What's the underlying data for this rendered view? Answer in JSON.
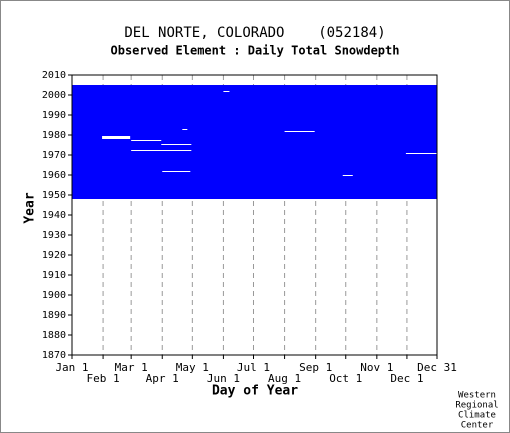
{
  "chart_data": {
    "type": "coverage",
    "title": "DEL NORTE, COLORADO    (052184)",
    "subtitle": "Observed Element : Daily Total Snowdepth",
    "x_label": "Day of Year",
    "y_label": "Year",
    "credit": [
      "Western",
      "Regional",
      "Climate",
      "Center"
    ],
    "color": "#0000ff",
    "xlim": [
      1,
      365
    ],
    "ylim": [
      1870,
      2010
    ],
    "xticks": [
      {
        "value": 1,
        "label": "Jan 1"
      },
      {
        "value": 32,
        "label": "Feb 1"
      },
      {
        "value": 60,
        "label": "Mar 1"
      },
      {
        "value": 91,
        "label": "Apr 1"
      },
      {
        "value": 121,
        "label": "May 1"
      },
      {
        "value": 152,
        "label": "Jun 1"
      },
      {
        "value": 182,
        "label": "Jul 1"
      },
      {
        "value": 213,
        "label": "Aug 1"
      },
      {
        "value": 244,
        "label": "Sep 1"
      },
      {
        "value": 274,
        "label": "Oct 1"
      },
      {
        "value": 305,
        "label": "Nov 1"
      },
      {
        "value": 335,
        "label": "Dec 1"
      },
      {
        "value": 365,
        "label": "Dec 31"
      }
    ],
    "yticks": [
      1870,
      1880,
      1890,
      1900,
      1910,
      1920,
      1930,
      1940,
      1950,
      1960,
      1970,
      1980,
      1990,
      2000,
      2010
    ],
    "grid": "x",
    "records": [
      {
        "days": [
          1,
          365
        ],
        "years": [
          1948,
          2005
        ]
      }
    ],
    "missing": [
      {
        "days": [
          31,
          59
        ],
        "years": [
          1978,
          1979.5
        ]
      },
      {
        "days": [
          60,
          90
        ],
        "years": [
          1977,
          1977.5
        ]
      },
      {
        "days": [
          90,
          120
        ],
        "years": [
          1975,
          1975.5
        ]
      },
      {
        "days": [
          60,
          120
        ],
        "years": [
          1972,
          1972.5
        ]
      },
      {
        "days": [
          91,
          119
        ],
        "years": [
          1961.5,
          1962
        ]
      },
      {
        "days": [
          213,
          243
        ],
        "years": [
          1981.5,
          1982
        ]
      },
      {
        "days": [
          271,
          281
        ],
        "years": [
          1959.5,
          1960
        ]
      },
      {
        "days": [
          334,
          365
        ],
        "years": [
          1970.5,
          1971
        ]
      },
      {
        "days": [
          152,
          158
        ],
        "years": [
          2001.5,
          2002
        ]
      },
      {
        "days": [
          111,
          116
        ],
        "years": [
          1982.5,
          1983
        ]
      }
    ]
  }
}
